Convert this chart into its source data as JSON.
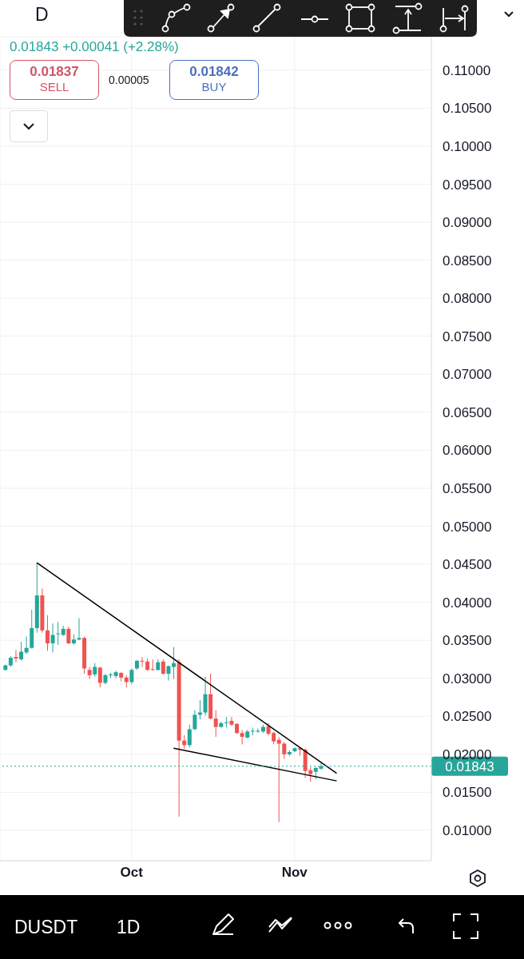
{
  "chart_data": {
    "type": "candlestick",
    "title": "D",
    "annotations": [
      "0.01843 +0.00041 (+2.28%)",
      "0.01837",
      "SELL",
      "0.00005",
      "0.01842",
      "BUY",
      "DUSDT",
      "1D"
    ],
    "x": [
      "--09-07",
      "--09-08",
      "--09-09",
      "--09-10",
      "--09-11",
      "--09-12",
      "--09-13",
      "--09-14",
      "--09-15",
      "--09-16",
      "--09-17",
      "--09-18",
      "--09-19",
      "--09-20",
      "--09-21",
      "--09-22",
      "--09-23",
      "--09-24",
      "--09-25",
      "--09-26",
      "--09-27",
      "--09-28",
      "--09-29",
      "--09-30",
      "--10-01",
      "--10-02",
      "--10-03",
      "--10-04",
      "--10-05",
      "--10-06",
      "--10-07",
      "--10-08",
      "--10-09",
      "--10-10",
      "--10-11",
      "--10-12",
      "--10-13",
      "--10-14",
      "--10-15",
      "--10-16",
      "--10-17",
      "--10-18",
      "--10-19",
      "--10-20",
      "--10-21",
      "--10-22",
      "--10-23",
      "--10-24",
      "--10-25",
      "--10-26",
      "--10-27",
      "--10-28",
      "--10-29",
      "--10-30",
      "--10-31",
      "--11-01",
      "--11-02",
      "--11-03",
      "--11-04",
      "--11-05",
      "--11-06"
    ],
    "ohlc": [
      [
        0.0311,
        0.0318,
        0.031,
        0.0317
      ],
      [
        0.0317,
        0.0329,
        0.0315,
        0.0327
      ],
      [
        0.0328,
        0.0337,
        0.0321,
        0.0326
      ],
      [
        0.0325,
        0.0348,
        0.0323,
        0.0335
      ],
      [
        0.0334,
        0.0355,
        0.0332,
        0.034
      ],
      [
        0.034,
        0.039,
        0.0339,
        0.0366
      ],
      [
        0.0366,
        0.0452,
        0.036,
        0.0409
      ],
      [
        0.0409,
        0.0418,
        0.036,
        0.0363
      ],
      [
        0.0363,
        0.0383,
        0.0336,
        0.0346
      ],
      [
        0.0346,
        0.0372,
        0.0334,
        0.0357
      ],
      [
        0.0358,
        0.0374,
        0.0344,
        0.0359
      ],
      [
        0.0357,
        0.0369,
        0.0356,
        0.0365
      ],
      [
        0.0365,
        0.0368,
        0.0345,
        0.0346
      ],
      [
        0.0346,
        0.0358,
        0.0344,
        0.0351
      ],
      [
        0.0351,
        0.0379,
        0.035,
        0.0353
      ],
      [
        0.0353,
        0.0355,
        0.0306,
        0.0313
      ],
      [
        0.0311,
        0.0315,
        0.0299,
        0.0304
      ],
      [
        0.0305,
        0.032,
        0.0302,
        0.0315
      ],
      [
        0.0314,
        0.0315,
        0.0288,
        0.0294
      ],
      [
        0.0294,
        0.0306,
        0.0292,
        0.0304
      ],
      [
        0.0304,
        0.0307,
        0.03,
        0.0305
      ],
      [
        0.0303,
        0.031,
        0.03,
        0.0308
      ],
      [
        0.0307,
        0.0308,
        0.0296,
        0.0301
      ],
      [
        0.0301,
        0.0304,
        0.0288,
        0.0295
      ],
      [
        0.0295,
        0.0313,
        0.0292,
        0.0311
      ],
      [
        0.0313,
        0.0324,
        0.0311,
        0.0323
      ],
      [
        0.0323,
        0.0328,
        0.0315,
        0.0322
      ],
      [
        0.0322,
        0.0326,
        0.031,
        0.0311
      ],
      [
        0.0312,
        0.0325,
        0.031,
        0.0311
      ],
      [
        0.0311,
        0.0325,
        0.031,
        0.0321
      ],
      [
        0.0322,
        0.0325,
        0.0305,
        0.0306
      ],
      [
        0.0306,
        0.0317,
        0.0297,
        0.0316
      ],
      [
        0.0315,
        0.0341,
        0.0299,
        0.032
      ],
      [
        0.0321,
        0.0325,
        0.0118,
        0.0218
      ],
      [
        0.0218,
        0.0225,
        0.0207,
        0.0212
      ],
      [
        0.0212,
        0.0239,
        0.0209,
        0.0233
      ],
      [
        0.0233,
        0.0258,
        0.0232,
        0.0252
      ],
      [
        0.0252,
        0.0271,
        0.0246,
        0.0255
      ],
      [
        0.0255,
        0.0302,
        0.0251,
        0.0279
      ],
      [
        0.0279,
        0.0306,
        0.0246,
        0.0247
      ],
      [
        0.0247,
        0.0258,
        0.0223,
        0.0236
      ],
      [
        0.0236,
        0.0243,
        0.0235,
        0.0241
      ],
      [
        0.0241,
        0.0249,
        0.0235,
        0.0242
      ],
      [
        0.0244,
        0.0249,
        0.0237,
        0.0239
      ],
      [
        0.024,
        0.0241,
        0.0227,
        0.0228
      ],
      [
        0.0228,
        0.0232,
        0.0213,
        0.0223
      ],
      [
        0.0222,
        0.0232,
        0.0221,
        0.023
      ],
      [
        0.023,
        0.0235,
        0.0225,
        0.0231
      ],
      [
        0.023,
        0.0234,
        0.0228,
        0.0231
      ],
      [
        0.023,
        0.0239,
        0.0228,
        0.0236
      ],
      [
        0.0237,
        0.0241,
        0.0225,
        0.0227
      ],
      [
        0.0228,
        0.023,
        0.0213,
        0.0217
      ],
      [
        0.0219,
        0.0223,
        0.0111,
        0.0214
      ],
      [
        0.0214,
        0.0216,
        0.0194,
        0.02
      ],
      [
        0.02,
        0.0205,
        0.0198,
        0.0203
      ],
      [
        0.0204,
        0.0209,
        0.0203,
        0.0208
      ],
      [
        0.0208,
        0.0209,
        0.0198,
        0.0206
      ],
      [
        0.0206,
        0.0208,
        0.0169,
        0.0178
      ],
      [
        0.0179,
        0.0183,
        0.0164,
        0.0174
      ],
      [
        0.0177,
        0.0183,
        0.0167,
        0.0182
      ],
      [
        0.0181,
        0.0188,
        0.018,
        0.01843
      ]
    ],
    "series": [
      {
        "type": "line",
        "x": [
          "--09-13",
          "--11-09"
        ],
        "values": [
          0.0452,
          0.0175
        ],
        "color": "#000000"
      },
      {
        "type": "line",
        "x": [
          "--10-09",
          "--11-09"
        ],
        "values": [
          0.0208,
          0.0165
        ],
        "color": "#000000"
      }
    ],
    "xlim": [
      "--09-06",
      "--11-27"
    ],
    "xticks": [
      {
        "value": "--10-01",
        "label": "Oct"
      },
      {
        "value": "--11-01",
        "label": "Nov"
      }
    ],
    "ylim": [
      0.006,
      0.1144
    ],
    "yticks": [
      {
        "value": 0.01,
        "label": "0.01000"
      },
      {
        "value": 0.015,
        "label": "0.01500"
      },
      {
        "value": 0.02,
        "label": "0.02000"
      },
      {
        "value": 0.025,
        "label": "0.02500"
      },
      {
        "value": 0.03,
        "label": "0.03000"
      },
      {
        "value": 0.035,
        "label": "0.03500"
      },
      {
        "value": 0.04,
        "label": "0.04000"
      },
      {
        "value": 0.045,
        "label": "0.04500"
      },
      {
        "value": 0.05,
        "label": "0.05000"
      },
      {
        "value": 0.055,
        "label": "0.05500"
      },
      {
        "value": 0.06,
        "label": "0.06000"
      },
      {
        "value": 0.065,
        "label": "0.06500"
      },
      {
        "value": 0.07,
        "label": "0.07000"
      },
      {
        "value": 0.075,
        "label": "0.07500"
      },
      {
        "value": 0.08,
        "label": "0.08000"
      },
      {
        "value": 0.085,
        "label": "0.08500"
      },
      {
        "value": 0.09,
        "label": "0.09000"
      },
      {
        "value": 0.095,
        "label": "0.09500"
      },
      {
        "value": 0.1,
        "label": "0.10000"
      },
      {
        "value": 0.105,
        "label": "0.10500"
      },
      {
        "value": 0.11,
        "label": "0.11000"
      }
    ],
    "ref_lines": [
      {
        "axis": "y",
        "value": 0.01843,
        "label": "0.01843",
        "color": "#26a69a",
        "line_style": "dotted"
      }
    ],
    "grid": true
  }
}
